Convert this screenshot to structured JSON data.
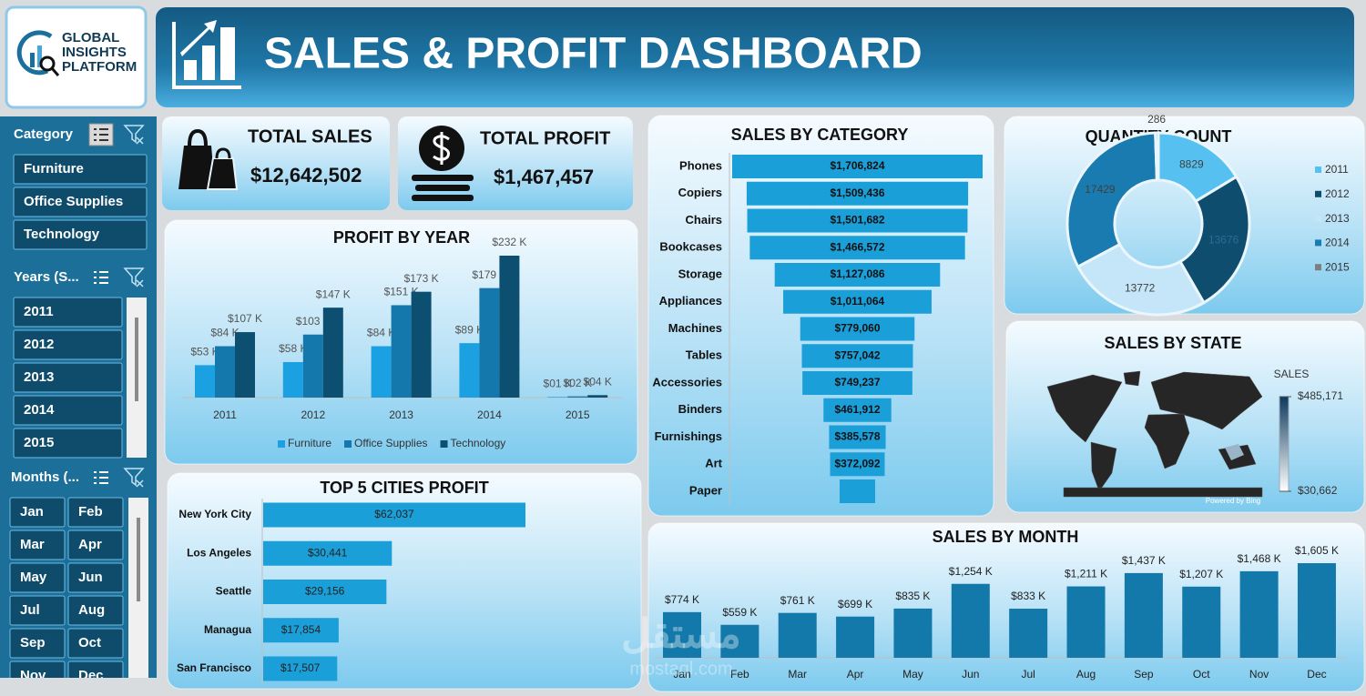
{
  "header": {
    "logo_lines": [
      "GLOBAL",
      "INSIGHTS",
      "PLATFORM"
    ],
    "title": "SALES & PROFIT DASHBOARD"
  },
  "kpis": [
    {
      "label": "TOTAL SALES",
      "value": "$12,642,502"
    },
    {
      "label": "TOTAL PROFIT",
      "value": "$1,467,457"
    }
  ],
  "slicers": [
    {
      "title": "Category",
      "items": [
        "Furniture",
        "Office Supplies",
        "Technology"
      ]
    },
    {
      "title": "Years (S...",
      "items": [
        "2011",
        "2012",
        "2013",
        "2014",
        "2015"
      ]
    },
    {
      "title": "Months (...",
      "items": [
        "Jan",
        "Feb",
        "Mar",
        "Apr",
        "May",
        "Jun",
        "Jul",
        "Aug",
        "Sep",
        "Oct",
        "Nov",
        "Dec"
      ]
    }
  ],
  "watermark": [
    "مستقل",
    "mostaql.com"
  ],
  "chart_data": [
    {
      "type": "grouped_bar",
      "title": "PROFIT BY YEAR",
      "categories": [
        "2011",
        "2012",
        "2013",
        "2014",
        "2015"
      ],
      "legend": "bottom",
      "series": [
        {
          "name": "Furniture",
          "color": "#1ba1e2",
          "values": [
            53,
            58,
            84,
            89,
            1
          ],
          "value_labels": [
            "$53 K",
            "$58 K",
            "$84 K",
            "$89 K",
            "$01 K"
          ]
        },
        {
          "name": "Office Supplies",
          "color": "#1578ad",
          "values": [
            84,
            103,
            151,
            179,
            2
          ],
          "value_labels": [
            "$84 K",
            "$103 K",
            "$151 K",
            "$179 K",
            "$02 K"
          ]
        },
        {
          "name": "Technology",
          "color": "#0d4f70",
          "values": [
            107,
            147,
            173,
            232,
            4
          ],
          "value_labels": [
            "$107 K",
            "$147 K",
            "$173 K",
            "$232 K",
            "$04 K"
          ]
        }
      ]
    },
    {
      "type": "hbar",
      "title": "TOP 5 CITIES PROFIT",
      "color": "#1a9fd9",
      "categories": [
        "New York City",
        "Los Angeles",
        "Seattle",
        "Managua",
        "San Francisco"
      ],
      "values": [
        62037,
        30441,
        29156,
        17854,
        17507
      ],
      "value_labels": [
        "$62,037",
        "$30,441",
        "$29,156",
        "$17,854",
        "$17,507"
      ]
    },
    {
      "type": "funnel",
      "title": "SALES BY CATEGORY",
      "color": "#1a9fd9",
      "categories": [
        "Phones",
        "Copiers",
        "Chairs",
        "Bookcases",
        "Storage",
        "Appliances",
        "Machines",
        "Tables",
        "Accessories",
        "Binders",
        "Furnishings",
        "Art",
        "Paper"
      ],
      "values": [
        1706824,
        1509436,
        1501682,
        1466572,
        1127086,
        1011064,
        779060,
        757042,
        749237,
        461912,
        385578,
        372092,
        242000
      ],
      "value_labels": [
        "$1,706,824",
        "$1,509,436",
        "$1,501,682",
        "$1,466,572",
        "$1,127,086",
        "$1,011,064",
        "$779,060",
        "$757,042",
        "$749,237",
        "$461,912",
        "$385,578",
        "$372,092",
        null
      ]
    },
    {
      "type": "donut",
      "title": "QUANTITY COUNT",
      "legend": "right",
      "categories": [
        "2011",
        "2012",
        "2013",
        "2014",
        "2015"
      ],
      "values": [
        8829,
        13676,
        13772,
        17429,
        286
      ],
      "colors": [
        "#56c1f0",
        "#0e4d6e",
        "#c4e6f8",
        "#1a7bb0",
        "#7f7f7f"
      ]
    },
    {
      "type": "map",
      "title": "SALES BY STATE",
      "legend_title": "SALES",
      "colorbar": [
        {
          "value": 485171,
          "label": "$485,171"
        },
        {
          "value": 30662,
          "label": "$30,662"
        }
      ],
      "colors": [
        "#0d3a5c",
        "#ffffff"
      ],
      "attribution": "Powered by Bing"
    },
    {
      "type": "bar",
      "title": "SALES BY MONTH",
      "color": "#1379aa",
      "categories": [
        "Jan",
        "Feb",
        "Mar",
        "Apr",
        "May",
        "Jun",
        "Jul",
        "Aug",
        "Sep",
        "Oct",
        "Nov",
        "Dec"
      ],
      "values": [
        774,
        559,
        761,
        699,
        835,
        1254,
        833,
        1211,
        1437,
        1207,
        1468,
        1605
      ],
      "value_labels": [
        "$774 K",
        "$559 K",
        "$761 K",
        "$699 K",
        "$835 K",
        "$1,254 K",
        "$833 K",
        "$1,211 K",
        "$1,437 K",
        "$1,207 K",
        "$1,468 K",
        "$1,605 K"
      ]
    }
  ]
}
